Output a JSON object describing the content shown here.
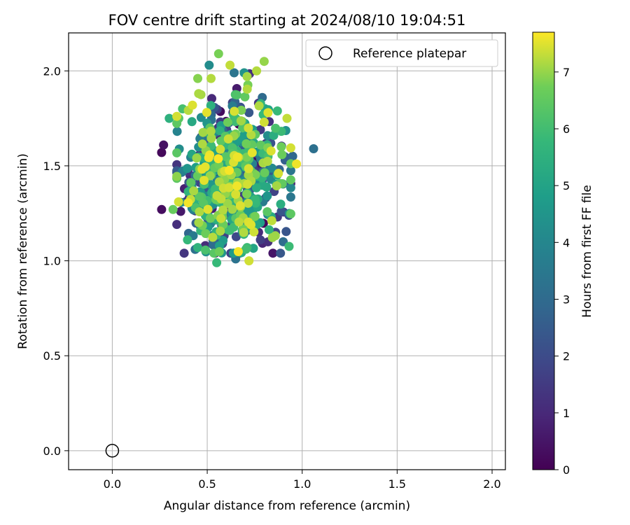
{
  "chart_data": {
    "type": "scatter",
    "title": "FOV centre drift starting at 2024/08/10 19:04:51",
    "xlabel": "Angular distance from reference (arcmin)",
    "ylabel": "Rotation from reference (arcmin)",
    "xlim": [
      -0.23,
      2.07
    ],
    "ylim": [
      -0.1,
      2.2
    ],
    "x_ticks": [
      0.0,
      0.5,
      1.0,
      1.5,
      2.0
    ],
    "x_tick_labels": [
      "0.0",
      "0.5",
      "1.0",
      "1.5",
      "2.0"
    ],
    "y_ticks": [
      0.0,
      0.5,
      1.0,
      1.5,
      2.0
    ],
    "y_tick_labels": [
      "0.0",
      "0.5",
      "1.0",
      "1.5",
      "2.0"
    ],
    "grid": true,
    "legend": {
      "placement": "top-right",
      "entries": [
        "Reference platepar"
      ]
    },
    "reference_point": {
      "x": 0.0,
      "y": 0.0,
      "marker": "open-circle",
      "name": "Reference platepar"
    },
    "colorbar": {
      "label": "Hours from first FF file",
      "range": [
        0,
        7.7
      ],
      "ticks": [
        0,
        1,
        2,
        3,
        4,
        5,
        6,
        7
      ],
      "tick_labels": [
        "0",
        "1",
        "2",
        "3",
        "4",
        "5",
        "6",
        "7"
      ],
      "colormap": "viridis"
    },
    "cloud": {
      "count": 620,
      "x_mean": 0.62,
      "x_sd": 0.13,
      "y_mean": 1.44,
      "y_sd": 0.2,
      "x_range": [
        0.26,
        1.06
      ],
      "y_range": [
        0.99,
        2.09
      ],
      "t_range": [
        0,
        7.7
      ]
    },
    "series": [
      {
        "points": [
          {
            "x": 0.26,
            "y": 1.57,
            "t": 0.2
          },
          {
            "x": 0.27,
            "y": 1.61,
            "t": 0.4
          },
          {
            "x": 0.26,
            "y": 1.27,
            "t": 0.3
          },
          {
            "x": 0.36,
            "y": 1.26,
            "t": 0.6
          },
          {
            "x": 0.38,
            "y": 1.38,
            "t": 0.8
          },
          {
            "x": 0.41,
            "y": 1.45,
            "t": 1.0
          },
          {
            "x": 0.49,
            "y": 1.08,
            "t": 1.1
          },
          {
            "x": 0.58,
            "y": 1.09,
            "t": 1.4
          },
          {
            "x": 0.78,
            "y": 1.11,
            "t": 1.6
          },
          {
            "x": 0.82,
            "y": 1.1,
            "t": 1.2
          },
          {
            "x": 0.86,
            "y": 1.15,
            "t": 1.8
          },
          {
            "x": 0.89,
            "y": 1.26,
            "t": 2.3
          },
          {
            "x": 0.93,
            "y": 1.24,
            "t": 2.1
          },
          {
            "x": 0.9,
            "y": 1.1,
            "t": 3.1
          },
          {
            "x": 0.88,
            "y": 1.48,
            "t": 2.8
          },
          {
            "x": 0.91,
            "y": 1.53,
            "t": 2.6
          },
          {
            "x": 0.95,
            "y": 1.55,
            "t": 2.9
          },
          {
            "x": 1.06,
            "y": 1.59,
            "t": 3.2
          },
          {
            "x": 0.77,
            "y": 1.83,
            "t": 1.3
          },
          {
            "x": 0.79,
            "y": 1.86,
            "t": 3.0
          },
          {
            "x": 0.78,
            "y": 1.69,
            "t": 1.5
          },
          {
            "x": 0.72,
            "y": 1.78,
            "t": 2.4
          },
          {
            "x": 0.65,
            "y": 1.01,
            "t": 3.3
          },
          {
            "x": 0.55,
            "y": 0.99,
            "t": 5.8
          },
          {
            "x": 0.72,
            "y": 1.0,
            "t": 7.4
          },
          {
            "x": 0.51,
            "y": 2.03,
            "t": 4.2
          },
          {
            "x": 0.56,
            "y": 2.09,
            "t": 6.8
          },
          {
            "x": 0.8,
            "y": 2.05,
            "t": 7.0
          },
          {
            "x": 0.76,
            "y": 2.0,
            "t": 7.2
          },
          {
            "x": 0.71,
            "y": 1.97,
            "t": 7.1
          },
          {
            "x": 0.62,
            "y": 2.03,
            "t": 7.3
          },
          {
            "x": 0.45,
            "y": 1.96,
            "t": 6.9
          },
          {
            "x": 0.52,
            "y": 1.96,
            "t": 7.2
          },
          {
            "x": 0.3,
            "y": 1.75,
            "t": 5.5
          },
          {
            "x": 0.35,
            "y": 1.75,
            "t": 6.4
          },
          {
            "x": 0.37,
            "y": 1.8,
            "t": 6.1
          },
          {
            "x": 0.92,
            "y": 1.75,
            "t": 7.3
          },
          {
            "x": 0.97,
            "y": 1.51,
            "t": 7.6
          },
          {
            "x": 0.32,
            "y": 1.27,
            "t": 6.6
          },
          {
            "x": 0.45,
            "y": 1.07,
            "t": 5.6
          },
          {
            "x": 0.71,
            "y": 1.07,
            "t": 5.9
          },
          {
            "x": 0.73,
            "y": 1.19,
            "t": 7.5
          },
          {
            "x": 0.89,
            "y": 1.6,
            "t": 6.7
          },
          {
            "x": 0.85,
            "y": 1.66,
            "t": 5.4
          },
          {
            "x": 0.8,
            "y": 1.73,
            "t": 7.4
          },
          {
            "x": 0.82,
            "y": 1.78,
            "t": 7.5
          }
        ]
      }
    ]
  }
}
